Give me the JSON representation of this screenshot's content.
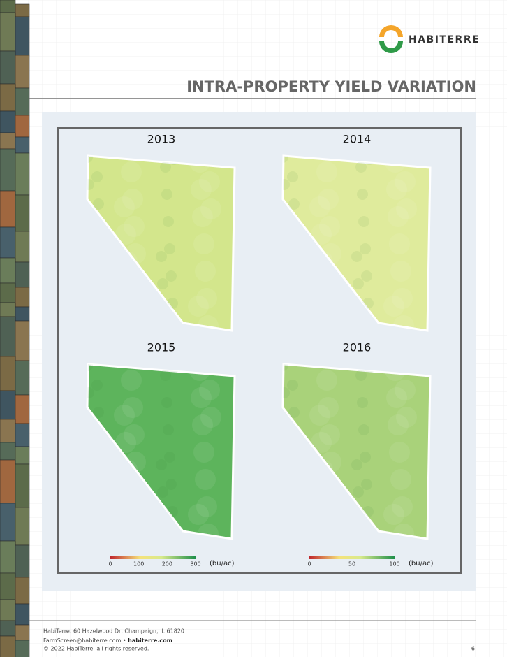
{
  "header": {
    "logo_text": "HABITERRE",
    "title": "INTRA-PROPERTY YIELD VARIATION"
  },
  "maps": [
    {
      "year": "2013",
      "color": "#d3e68c"
    },
    {
      "year": "2014",
      "color": "#dfeb9c"
    },
    {
      "year": "2015",
      "color": "#5db45c"
    },
    {
      "year": "2016",
      "color": "#a9d27a"
    }
  ],
  "legends": [
    {
      "ticks": [
        0,
        100,
        200,
        300
      ],
      "unit": "(bu/ac)"
    },
    {
      "ticks": [
        0,
        50,
        100
      ],
      "unit": "(bu/ac)"
    }
  ],
  "footer": {
    "address": "HabiTerre. 60 Hazelwood Dr, Champaign, IL 61820",
    "email": "FarmScreen@habiterre.com",
    "separator": "•",
    "website": "habiterre.com",
    "copyright": "© 2022 HabiTerre, all rights reserved.",
    "page_number": "6"
  }
}
